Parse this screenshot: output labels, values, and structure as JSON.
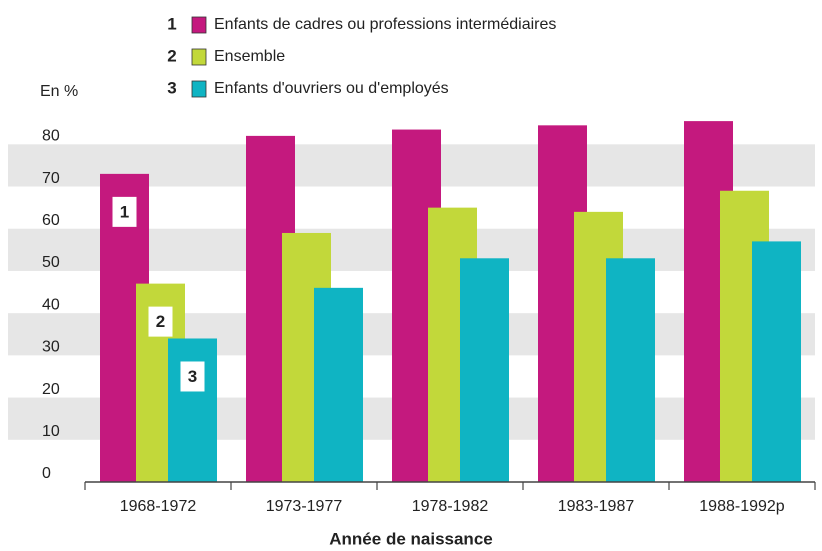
{
  "chart_data": {
    "type": "bar",
    "y_label": "En %",
    "x_label": "Année de naissance",
    "categories": [
      "1968-1972",
      "1973-1977",
      "1978-1982",
      "1983-1987",
      "1988-1992p"
    ],
    "series": [
      {
        "number": "1",
        "name": "Enfants de cadres ou professions intermédiaires",
        "color": "#c4197e",
        "values": [
          73,
          82,
          83.5,
          84.5,
          85.5
        ]
      },
      {
        "number": "2",
        "name": "Ensemble",
        "color": "#c2d83a",
        "values": [
          47,
          59,
          65,
          64,
          69
        ]
      },
      {
        "number": "3",
        "name": "Enfants d'ouvriers ou d'employés",
        "color": "#0fb4c3",
        "values": [
          34,
          46,
          53,
          53,
          57
        ]
      }
    ],
    "ylim": [
      0,
      86
    ],
    "yticks": [
      0,
      10,
      20,
      30,
      40,
      50,
      60,
      70,
      80
    ],
    "grid": "bands"
  }
}
